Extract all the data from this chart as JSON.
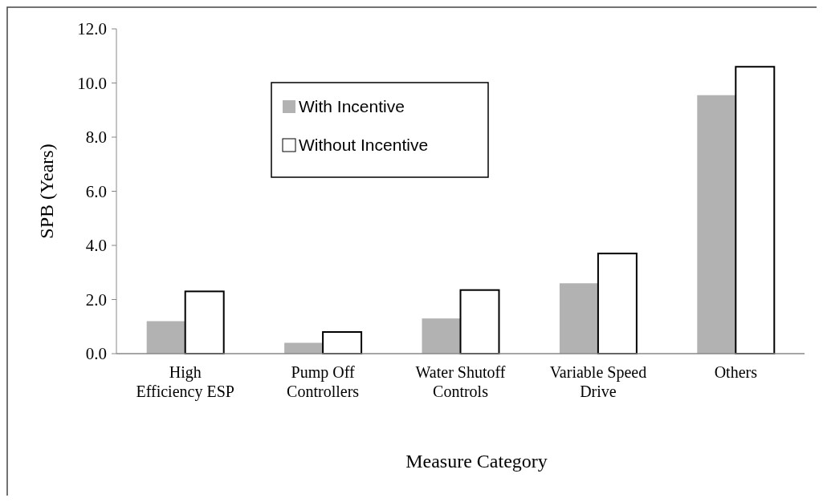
{
  "chart_data": {
    "type": "bar",
    "xlabel": "Measure Category",
    "ylabel": "SPB (Years)",
    "categories": [
      "High Efficiency ESP",
      "Pump Off Controllers",
      "Water Shutoff Controls",
      "Variable Speed Drive",
      "Others"
    ],
    "series": [
      {
        "name": "With Incentive",
        "color": "#b2b2b2",
        "values": [
          1.2,
          0.4,
          1.3,
          2.6,
          9.55
        ]
      },
      {
        "name": "Without Incentive",
        "color": "#ffffff",
        "values": [
          2.3,
          0.8,
          2.35,
          3.7,
          10.6
        ]
      }
    ],
    "ylim": [
      0,
      12
    ],
    "yticks": [
      {
        "value": 0,
        "label": "0.0"
      },
      {
        "value": 2,
        "label": "2.0"
      },
      {
        "value": 4,
        "label": "4.0"
      },
      {
        "value": 6,
        "label": "6.0"
      },
      {
        "value": 8,
        "label": "8.0"
      },
      {
        "value": 10,
        "label": "10.0"
      },
      {
        "value": 12,
        "label": "12.0"
      }
    ],
    "legend": "top"
  }
}
